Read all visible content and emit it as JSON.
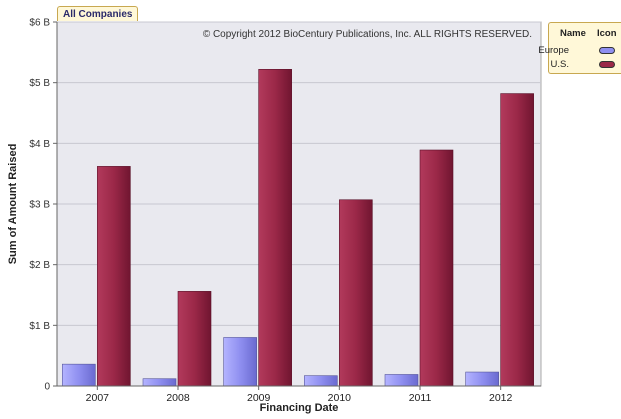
{
  "tab_label": "All Companies",
  "copyright": "© Copyright 2012 BioCentury Publications, Inc. ALL RIGHTS RESERVED.",
  "legend": {
    "header_name": "Name",
    "header_icon": "Icon",
    "items": [
      {
        "label": "Europe",
        "color": "#8f8ff0"
      },
      {
        "label": "U.S.",
        "color": "#9b2848"
      }
    ]
  },
  "colors": {
    "plot_background": "#e9e9ef",
    "europe_bar": "#8f8ff0",
    "us_bar": "#9b2848"
  },
  "chart_data": {
    "type": "bar",
    "title": "",
    "xlabel": "Financing Date",
    "ylabel": "Sum of Amount Raised",
    "categories": [
      "2007",
      "2008",
      "2009",
      "2010",
      "2011",
      "2012"
    ],
    "series": [
      {
        "name": "Europe",
        "values": [
          0.36,
          0.12,
          0.8,
          0.17,
          0.19,
          0.23
        ]
      },
      {
        "name": "U.S.",
        "values": [
          3.62,
          1.56,
          5.22,
          3.07,
          3.89,
          4.82
        ]
      }
    ],
    "ylim": [
      0,
      6
    ],
    "yticks": [
      0,
      1,
      2,
      3,
      4,
      5,
      6
    ],
    "ytick_labels": [
      "0",
      "$1 B",
      "$2 B",
      "$3 B",
      "$4 B",
      "$5 B",
      "$6 B"
    ],
    "grid": true,
    "legend_position": "top-right"
  }
}
